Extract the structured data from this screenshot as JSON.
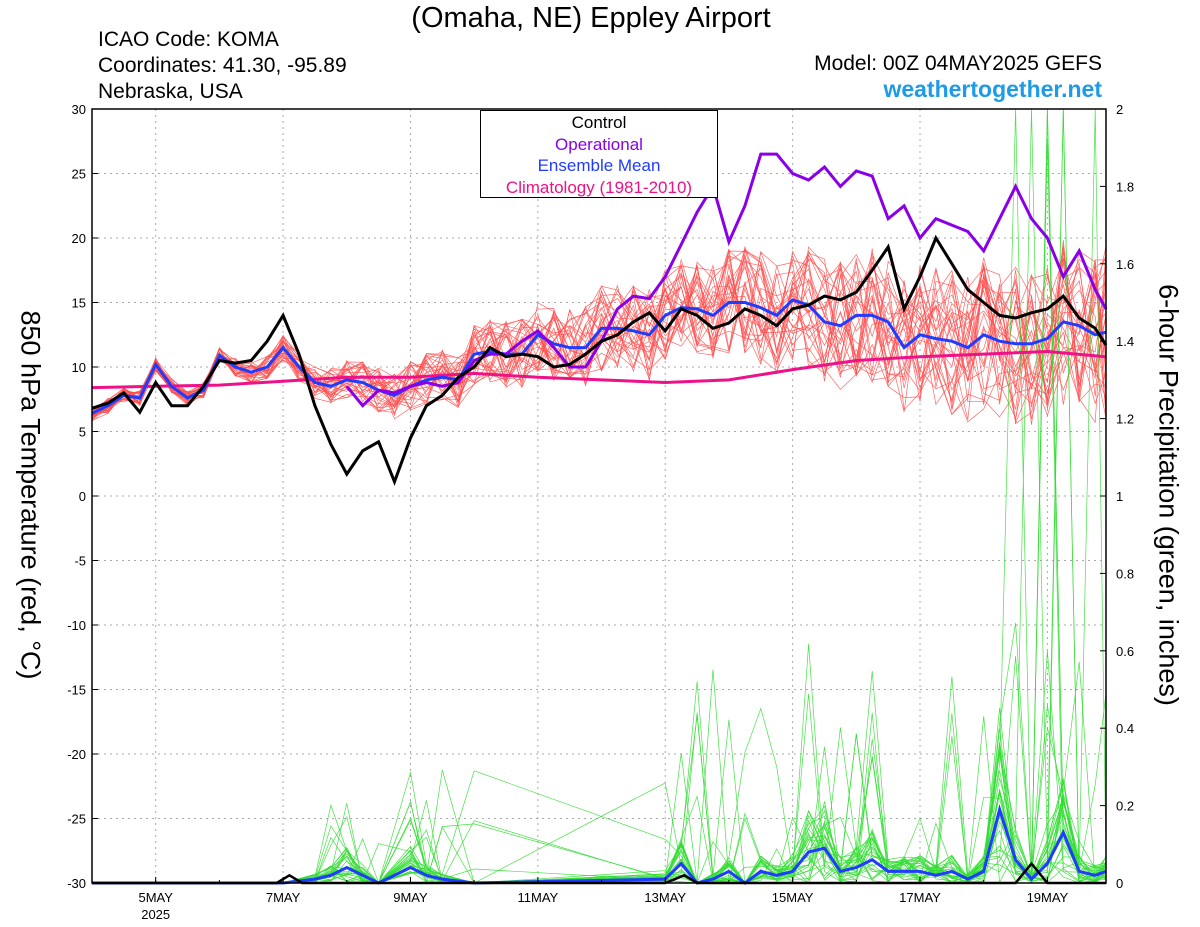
{
  "header": {
    "title": "(Omaha, NE) Eppley Airport",
    "icao": "ICAO Code: KOMA",
    "coordinates": "Coordinates: 41.30, -95.89",
    "region": "Nebraska, USA",
    "model": "Model: 00Z 04MAY2025 GEFS",
    "brand": "weathertogether.net"
  },
  "colors": {
    "members": "#ff4d4d",
    "precip": "#33dd33",
    "control": "#000000",
    "operational": "#8a00e6",
    "ensemble_mean": "#1f3cff",
    "climatology": "#ee1188",
    "brand": "#1e9be8"
  },
  "chart_data": {
    "type": "line",
    "title": "(Omaha, NE) Eppley Airport",
    "ylabel": "850 hPa Temperature (red, °C)",
    "y2label": "6-hour Precipitation (green, inches)",
    "ylim": [
      -30,
      30
    ],
    "y2lim": [
      0,
      2
    ],
    "xlim": [
      4.0,
      19.92
    ],
    "x_unit": "day of May 2025",
    "yticks": [
      "30",
      "25",
      "20",
      "15",
      "10",
      "5",
      "0",
      "-5",
      "-10",
      "-15",
      "-20",
      "-25",
      "-30"
    ],
    "y2ticks": [
      "2",
      "1.8",
      "1.6",
      "1.4",
      "1.2",
      "1",
      "0.8",
      "0.6",
      "0.4",
      "0.2",
      "0"
    ],
    "xticks": [
      {
        "x": 5,
        "label": "5MAY",
        "sub": "2025"
      },
      {
        "x": 7,
        "label": "7MAY",
        "sub": ""
      },
      {
        "x": 9,
        "label": "9MAY",
        "sub": ""
      },
      {
        "x": 11,
        "label": "11MAY",
        "sub": ""
      },
      {
        "x": 13,
        "label": "13MAY",
        "sub": ""
      },
      {
        "x": 15,
        "label": "15MAY",
        "sub": ""
      },
      {
        "x": 17,
        "label": "17MAY",
        "sub": ""
      },
      {
        "x": 19,
        "label": "19MAY",
        "sub": ""
      }
    ],
    "grid": true,
    "legend": {
      "position": "top-center",
      "entries": [
        {
          "label": "Control",
          "color": "#000000"
        },
        {
          "label": "Operational",
          "color": "#8a00e6"
        },
        {
          "label": "Ensemble Mean",
          "color": "#1f3cff"
        },
        {
          "label": "Climatology (1981-2010)",
          "color": "#ee1188"
        }
      ]
    },
    "temp_series": {
      "control": [
        [
          4.0,
          6.8
        ],
        [
          4.25,
          7.2
        ],
        [
          4.5,
          8.0
        ],
        [
          4.75,
          6.5
        ],
        [
          5.0,
          8.8
        ],
        [
          5.25,
          7.0
        ],
        [
          5.5,
          7.0
        ],
        [
          5.75,
          8.5
        ],
        [
          6.0,
          10.5
        ],
        [
          6.25,
          10.3
        ],
        [
          6.5,
          10.5
        ],
        [
          6.75,
          12.0
        ],
        [
          7.0,
          14.0
        ],
        [
          7.25,
          11.0
        ],
        [
          7.5,
          7.0
        ],
        [
          7.75,
          4.0
        ],
        [
          8.0,
          1.7
        ],
        [
          8.25,
          3.5
        ],
        [
          8.5,
          4.2
        ],
        [
          8.75,
          1.1
        ],
        [
          9.0,
          4.5
        ],
        [
          9.25,
          7.0
        ],
        [
          9.5,
          7.8
        ],
        [
          9.75,
          9.2
        ],
        [
          10.0,
          10.0
        ],
        [
          10.25,
          11.5
        ],
        [
          10.5,
          10.8
        ],
        [
          10.75,
          11.0
        ],
        [
          11.0,
          10.8
        ],
        [
          11.25,
          10.0
        ],
        [
          11.5,
          10.2
        ],
        [
          11.75,
          11.0
        ],
        [
          12.0,
          12.0
        ],
        [
          12.25,
          12.5
        ],
        [
          12.5,
          13.5
        ],
        [
          12.75,
          14.2
        ],
        [
          13.0,
          12.8
        ],
        [
          13.25,
          14.5
        ],
        [
          13.5,
          14.0
        ],
        [
          13.75,
          13.0
        ],
        [
          14.0,
          13.4
        ],
        [
          14.25,
          14.5
        ],
        [
          14.5,
          14.0
        ],
        [
          14.75,
          13.2
        ],
        [
          15.0,
          14.5
        ],
        [
          15.25,
          14.8
        ],
        [
          15.5,
          15.5
        ],
        [
          15.75,
          15.2
        ],
        [
          16.0,
          15.8
        ],
        [
          16.25,
          17.5
        ],
        [
          16.5,
          19.3
        ],
        [
          16.75,
          14.5
        ],
        [
          17.0,
          17.0
        ],
        [
          17.25,
          20.0
        ],
        [
          17.5,
          18.0
        ],
        [
          17.75,
          16.0
        ],
        [
          18.0,
          15.0
        ],
        [
          18.25,
          14.0
        ],
        [
          18.5,
          13.8
        ],
        [
          18.75,
          14.2
        ],
        [
          19.0,
          14.5
        ],
        [
          19.25,
          15.5
        ],
        [
          19.5,
          13.8
        ],
        [
          19.75,
          13.0
        ],
        [
          19.92,
          11.7
        ]
      ],
      "operational": [
        [
          8.0,
          8.5
        ],
        [
          8.25,
          7.0
        ],
        [
          8.5,
          8.2
        ],
        [
          8.75,
          8.0
        ],
        [
          9.0,
          8.5
        ],
        [
          9.25,
          8.8
        ],
        [
          9.5,
          8.5
        ],
        [
          9.75,
          8.8
        ],
        [
          10.0,
          10.5
        ],
        [
          10.25,
          11.0
        ],
        [
          10.5,
          11.0
        ],
        [
          10.75,
          12.0
        ],
        [
          11.0,
          12.8
        ],
        [
          11.25,
          11.5
        ],
        [
          11.5,
          10.0
        ],
        [
          11.75,
          10.0
        ],
        [
          12.0,
          12.0
        ],
        [
          12.25,
          14.5
        ],
        [
          12.5,
          15.5
        ],
        [
          12.75,
          15.3
        ],
        [
          13.0,
          17.0
        ],
        [
          13.25,
          19.5
        ],
        [
          13.5,
          22.0
        ],
        [
          13.75,
          24.0
        ],
        [
          14.0,
          19.7
        ],
        [
          14.25,
          22.5
        ],
        [
          14.5,
          26.5
        ],
        [
          14.75,
          26.5
        ],
        [
          15.0,
          25.0
        ],
        [
          15.25,
          24.5
        ],
        [
          15.5,
          25.5
        ],
        [
          15.75,
          24.0
        ],
        [
          16.0,
          25.2
        ],
        [
          16.25,
          24.8
        ],
        [
          16.5,
          21.5
        ],
        [
          16.75,
          22.5
        ],
        [
          17.0,
          20.0
        ],
        [
          17.25,
          21.5
        ],
        [
          17.5,
          21.0
        ],
        [
          17.75,
          20.5
        ],
        [
          18.0,
          19.0
        ],
        [
          18.25,
          21.5
        ],
        [
          18.5,
          24.0
        ],
        [
          18.75,
          21.5
        ],
        [
          19.0,
          20.0
        ],
        [
          19.25,
          17.0
        ],
        [
          19.5,
          19.0
        ],
        [
          19.75,
          16.0
        ],
        [
          19.92,
          14.5
        ]
      ],
      "ensemble_mean": [
        [
          4.0,
          6.4
        ],
        [
          4.25,
          7.0
        ],
        [
          4.5,
          7.8
        ],
        [
          4.75,
          7.6
        ],
        [
          5.0,
          10.2
        ],
        [
          5.25,
          8.5
        ],
        [
          5.5,
          7.6
        ],
        [
          5.75,
          8.2
        ],
        [
          6.0,
          10.9
        ],
        [
          6.25,
          10.0
        ],
        [
          6.5,
          9.6
        ],
        [
          6.75,
          10.0
        ],
        [
          7.0,
          11.5
        ],
        [
          7.25,
          10.0
        ],
        [
          7.5,
          8.8
        ],
        [
          7.75,
          8.5
        ],
        [
          8.0,
          9.0
        ],
        [
          8.25,
          8.8
        ],
        [
          8.5,
          8.2
        ],
        [
          8.75,
          7.8
        ],
        [
          9.0,
          8.5
        ],
        [
          9.25,
          9.0
        ],
        [
          9.5,
          9.2
        ],
        [
          9.75,
          9.0
        ],
        [
          10.0,
          11.0
        ],
        [
          10.25,
          11.2
        ],
        [
          10.5,
          11.0
        ],
        [
          10.75,
          11.0
        ],
        [
          11.0,
          12.5
        ],
        [
          11.25,
          11.8
        ],
        [
          11.5,
          11.5
        ],
        [
          11.75,
          11.5
        ],
        [
          12.0,
          13.0
        ],
        [
          12.25,
          13.0
        ],
        [
          12.5,
          12.8
        ],
        [
          12.75,
          12.5
        ],
        [
          13.0,
          14.0
        ],
        [
          13.25,
          14.6
        ],
        [
          13.5,
          14.5
        ],
        [
          13.75,
          14.0
        ],
        [
          14.0,
          15.0
        ],
        [
          14.25,
          15.0
        ],
        [
          14.5,
          14.6
        ],
        [
          14.75,
          14.0
        ],
        [
          15.0,
          15.2
        ],
        [
          15.25,
          14.8
        ],
        [
          15.5,
          13.5
        ],
        [
          15.75,
          13.2
        ],
        [
          16.0,
          14.0
        ],
        [
          16.25,
          14.0
        ],
        [
          16.5,
          13.5
        ],
        [
          16.75,
          11.5
        ],
        [
          17.0,
          12.5
        ],
        [
          17.25,
          12.2
        ],
        [
          17.5,
          12.0
        ],
        [
          17.75,
          11.5
        ],
        [
          18.0,
          12.5
        ],
        [
          18.25,
          12.0
        ],
        [
          18.5,
          11.8
        ],
        [
          18.75,
          11.8
        ],
        [
          19.0,
          12.2
        ],
        [
          19.25,
          13.5
        ],
        [
          19.5,
          13.2
        ],
        [
          19.75,
          12.5
        ],
        [
          19.92,
          12.7
        ]
      ],
      "climatology": [
        [
          4.0,
          8.4
        ],
        [
          5.0,
          8.5
        ],
        [
          6.0,
          8.6
        ],
        [
          7.0,
          8.9
        ],
        [
          8.0,
          9.2
        ],
        [
          9.0,
          9.2
        ],
        [
          10.0,
          9.5
        ],
        [
          11.0,
          9.2
        ],
        [
          12.0,
          9.0
        ],
        [
          13.0,
          8.8
        ],
        [
          14.0,
          9.0
        ],
        [
          15.0,
          9.8
        ],
        [
          16.0,
          10.5
        ],
        [
          17.0,
          10.8
        ],
        [
          18.0,
          11.0
        ],
        [
          19.0,
          11.2
        ],
        [
          19.92,
          10.8
        ]
      ]
    },
    "precip_series": {
      "control": [
        [
          4.0,
          0
        ],
        [
          6.9,
          0
        ],
        [
          7.1,
          0.02
        ],
        [
          7.3,
          0
        ],
        [
          13.0,
          0
        ],
        [
          13.3,
          0.02
        ],
        [
          13.5,
          0
        ],
        [
          18.5,
          0
        ],
        [
          18.75,
          0.05
        ],
        [
          19.0,
          0
        ],
        [
          19.92,
          0
        ]
      ],
      "ensemble_mean": [
        [
          4.0,
          0
        ],
        [
          6.5,
          0
        ],
        [
          7.0,
          0
        ],
        [
          7.5,
          0.01
        ],
        [
          7.75,
          0.02
        ],
        [
          8.0,
          0.04
        ],
        [
          8.25,
          0.02
        ],
        [
          8.5,
          0
        ],
        [
          9.0,
          0.04
        ],
        [
          9.25,
          0.02
        ],
        [
          9.5,
          0.01
        ],
        [
          10.0,
          0
        ],
        [
          13.0,
          0.01
        ],
        [
          13.25,
          0.05
        ],
        [
          13.5,
          0
        ],
        [
          13.75,
          0.01
        ],
        [
          14.0,
          0.03
        ],
        [
          14.25,
          0
        ],
        [
          14.5,
          0.03
        ],
        [
          14.75,
          0.02
        ],
        [
          15.0,
          0.03
        ],
        [
          15.25,
          0.08
        ],
        [
          15.5,
          0.09
        ],
        [
          15.75,
          0.03
        ],
        [
          16.0,
          0.04
        ],
        [
          16.25,
          0.06
        ],
        [
          16.5,
          0.03
        ],
        [
          16.75,
          0.03
        ],
        [
          17.0,
          0.03
        ],
        [
          17.25,
          0.02
        ],
        [
          17.5,
          0.03
        ],
        [
          17.75,
          0.01
        ],
        [
          18.0,
          0.03
        ],
        [
          18.25,
          0.19
        ],
        [
          18.5,
          0.06
        ],
        [
          18.75,
          0.01
        ],
        [
          19.0,
          0.05
        ],
        [
          19.25,
          0.13
        ],
        [
          19.5,
          0.03
        ],
        [
          19.75,
          0.02
        ],
        [
          19.92,
          0.03
        ]
      ]
    }
  }
}
